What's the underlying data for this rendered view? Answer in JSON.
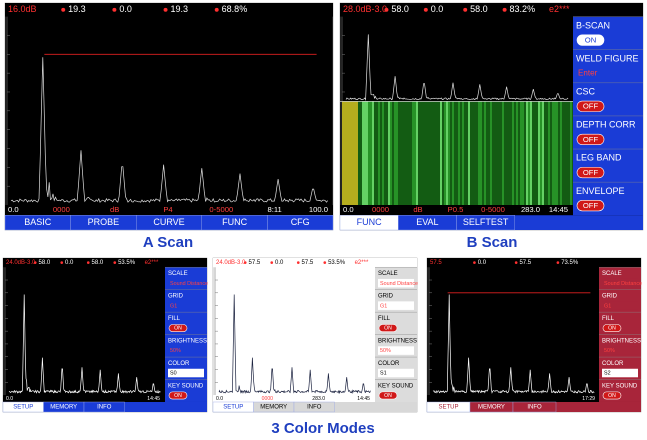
{
  "panels": [
    {
      "status": [
        "16.0dB",
        "19.3",
        "0.0",
        "19.3",
        "68.8%"
      ],
      "sidebar": [],
      "footer": [
        "0.0",
        "0000",
        "dB",
        "P4",
        "0-5000",
        "8:11",
        "100.0"
      ],
      "menu": [
        "BASIC",
        "PROBE",
        "CURVE",
        "FUNC",
        "CFG"
      ]
    },
    {
      "status": [
        "28.0dB-3.0",
        "58.0",
        "0.0",
        "58.0",
        "83.2%",
        "e2***"
      ],
      "sidebar": [
        "B-SCAN",
        "ON",
        "WELD FIGURE",
        "Enter",
        "CSC",
        "OFF",
        "DEPTH CORR",
        "OFF",
        "LEG BAND",
        "OFF",
        "ENVELOPE",
        "OFF"
      ],
      "footer": [
        "0.0",
        "0000",
        "dB",
        "P0.5",
        "0-5000",
        "283.0",
        "14:45"
      ],
      "menu": [
        "FUNC",
        "EVAL",
        "SELFTEST"
      ]
    },
    {
      "status": [
        "24.0dB-3.0",
        "58.0",
        "0.0",
        "58.0",
        "53.5%",
        "e2***"
      ],
      "sidebar": [
        "SCALE",
        "Sound Distance",
        "GRID",
        "G1",
        "FILL",
        "ON",
        "BRIGHTNESS",
        "50%",
        "COLOR",
        "S0",
        "KEY SOUND",
        "ON"
      ],
      "footer": [
        "0.0",
        "14:45"
      ],
      "menu": [
        "SETUP",
        "MEMORY",
        "INFO"
      ]
    },
    {
      "status": [
        "24.0dB-3.0",
        "57.5",
        "0.0",
        "57.5",
        "53.5%",
        "e2***"
      ],
      "sidebar": [
        "SCALE",
        "Sound Distance",
        "GRID",
        "G1",
        "FILL",
        "ON",
        "BRIGHTNESS",
        "50%",
        "COLOR",
        "S1",
        "KEY SOUND",
        "ON"
      ],
      "footer": [
        "0.0",
        "0000",
        "283.0",
        "14:45"
      ],
      "menu": [
        "SETUP",
        "MEMORY",
        "INFO"
      ]
    },
    {
      "status": [
        "57.5",
        "0.0",
        "57.5",
        "73.5%"
      ],
      "sidebar": [
        "SCALE",
        "Sound Distance",
        "GRID",
        "G1",
        "FILL",
        "ON",
        "BRIGHTNESS",
        "50%",
        "COLOR",
        "S2",
        "KEY SOUND",
        "ON"
      ],
      "footer": [
        "17:29"
      ],
      "menu": [
        "SETUP",
        "MEMORY",
        "INFO"
      ]
    }
  ],
  "captions": [
    "A Scan",
    "B Scan",
    "3 Color Modes"
  ]
}
